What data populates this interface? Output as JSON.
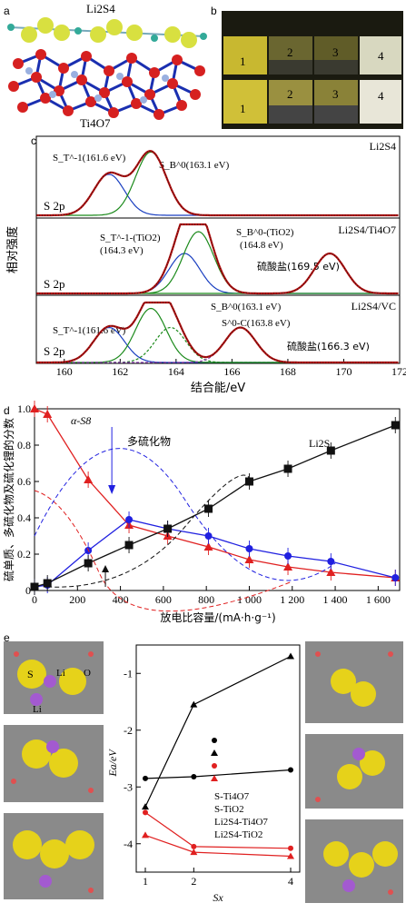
{
  "panel_a": {
    "label": "a",
    "top_text": "Li2S4",
    "bottom_text": "Ti4O7"
  },
  "panel_b": {
    "label": "b",
    "vials_top": [
      "1",
      "2",
      "3",
      "4"
    ],
    "vials_bottom": [
      "1",
      "2",
      "3",
      "4"
    ]
  },
  "panel_c": {
    "label": "c",
    "ylabel": "相对强度",
    "xlabel": "结合能/eV",
    "x_ticks": [
      "160",
      "162",
      "164",
      "166",
      "168",
      "170",
      "172"
    ],
    "spectra": [
      {
        "sample": "Li2S4",
        "core": "S 2p",
        "ann": [
          "S_T^-1(161.6 eV)",
          "S_B^0(163.1 eV)"
        ]
      },
      {
        "sample": "Li2S4/Ti4O7",
        "core": "S 2p",
        "ann": [
          "S_T^-1-(TiO2)",
          "(164.3 eV)",
          "S_B^0-(TiO2)",
          "(164.8 eV)",
          "硫酸盐(169.5 eV)"
        ]
      },
      {
        "sample": "Li2S4/VC",
        "core": "S 2p",
        "ann": [
          "S_T^-1(161.6 eV)",
          "S_B^0(163.1 eV)",
          "S^0-C(163.8 eV)",
          "硫酸盐(166.3 eV)"
        ]
      }
    ]
  },
  "panel_d": {
    "label": "d",
    "ylabel": "硫单质、多硫化物及硫化锂的分数",
    "xlabel": "放电比容量/(mA·h·g⁻¹)",
    "ann_s8": "α-S8",
    "ann_poly": "多硫化物",
    "ann_li2s": "Li2S",
    "x_ticks": [
      "0",
      "200",
      "400",
      "600",
      "800",
      "1 000",
      "1 200",
      "1 400",
      "1 600"
    ],
    "y_ticks": [
      "0",
      "0.2",
      "0.4",
      "0.6",
      "0.8",
      "1.0"
    ]
  },
  "panel_e": {
    "label": "e",
    "atom_labels": [
      "S",
      "Li",
      "O",
      "Li"
    ],
    "ylabel": "Ea/eV",
    "xlabel": "Sx",
    "x_ticks": [
      "1",
      "2",
      "4"
    ],
    "y_ticks": [
      "-1",
      "-2",
      "-3",
      "-4"
    ],
    "legend": [
      "S-Ti4O7",
      "S-TiO2",
      "Li2S4-Ti4O7",
      "Li2S4-TiO2"
    ]
  },
  "chart_data": [
    {
      "type": "line",
      "panel": "c",
      "xlabel": "结合能/eV",
      "ylabel": "相对强度",
      "xlim": [
        159,
        172
      ],
      "series": [
        {
          "name": "Li2S4",
          "peaks": [
            161.6,
            163.1
          ]
        },
        {
          "name": "Li2S4/Ti4O7",
          "peaks": [
            164.3,
            164.8,
            169.5
          ]
        },
        {
          "name": "Li2S4/VC",
          "peaks": [
            161.6,
            163.1,
            163.8,
            166.3
          ]
        }
      ]
    },
    {
      "type": "line",
      "panel": "d",
      "xlabel": "放电比容量/(mA·h·g⁻¹)",
      "ylabel": "硫单质、多硫化物及硫化锂的分数",
      "xlim": [
        0,
        1700
      ],
      "ylim": [
        0,
        1.0
      ],
      "series": [
        {
          "name": "α-S8",
          "color": "#e02020",
          "x": [
            0,
            60,
            250,
            440,
            620,
            810,
            1000,
            1180,
            1380,
            1680
          ],
          "y": [
            1.0,
            0.97,
            0.61,
            0.36,
            0.3,
            0.24,
            0.17,
            0.13,
            0.1,
            0.07
          ]
        },
        {
          "name": "多硫化物",
          "color": "#2020e0",
          "x": [
            0,
            60,
            250,
            440,
            620,
            810,
            1000,
            1180,
            1380,
            1680
          ],
          "y": [
            0.02,
            0.03,
            0.22,
            0.39,
            0.34,
            0.3,
            0.23,
            0.19,
            0.16,
            0.07
          ]
        },
        {
          "name": "Li2S",
          "color": "#111111",
          "x": [
            0,
            60,
            250,
            440,
            620,
            810,
            1000,
            1180,
            1380,
            1680
          ],
          "y": [
            0.02,
            0.04,
            0.15,
            0.25,
            0.34,
            0.45,
            0.6,
            0.67,
            0.77,
            0.91
          ]
        }
      ]
    },
    {
      "type": "line",
      "panel": "e",
      "xlabel": "Sx",
      "ylabel": "Ea/eV",
      "x": [
        1,
        2,
        4
      ],
      "ylim": [
        -4.5,
        -0.5
      ],
      "series": [
        {
          "name": "S-Ti4O7",
          "color": "#000000",
          "marker": "circle",
          "values": [
            -2.85,
            -2.82,
            -2.7
          ]
        },
        {
          "name": "S-TiO2",
          "color": "#000000",
          "marker": "triangle",
          "values": [
            -3.35,
            -1.55,
            -0.7
          ]
        },
        {
          "name": "Li2S4-Ti4O7",
          "color": "#e02020",
          "marker": "circle",
          "values": [
            -3.45,
            -4.05,
            -4.08
          ]
        },
        {
          "name": "Li2S4-TiO2",
          "color": "#e02020",
          "marker": "triangle",
          "values": [
            -3.85,
            -4.15,
            -4.22
          ]
        }
      ]
    }
  ]
}
